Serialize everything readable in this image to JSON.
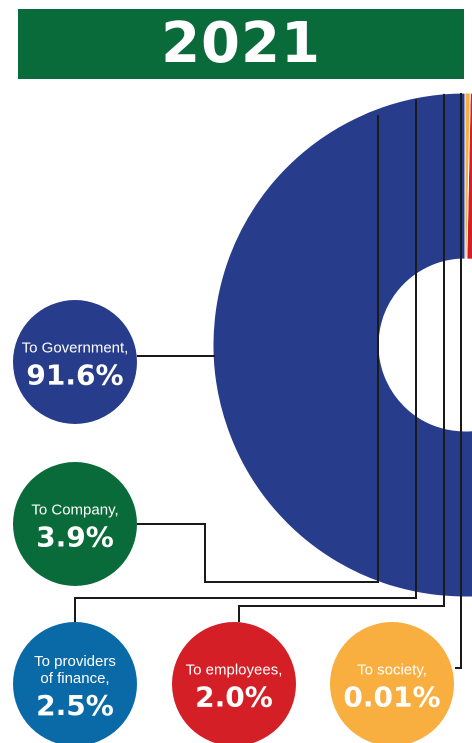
{
  "title": "2021",
  "colors": {
    "title_bg": "#0a6b3a",
    "leader_line": "#1a1a1a"
  },
  "chart_data": {
    "type": "pie",
    "title": "2021",
    "unit": "%",
    "slices": [
      {
        "label": "To Government,",
        "value": 91.6,
        "display": "91.6%",
        "color": "#283c8c"
      },
      {
        "label": "To Company,",
        "value": 3.9,
        "display": "3.9%",
        "color": "#0a6b3a"
      },
      {
        "label": "To providers of finance,",
        "label_lines": [
          "To providers",
          "of finance,"
        ],
        "value": 2.5,
        "display": "2.5%",
        "color": "#0a6aa8"
      },
      {
        "label": "To employees,",
        "value": 2.0,
        "display": "2.0%",
        "color": "#d41f26"
      },
      {
        "label": "To society,",
        "value": 0.01,
        "display": "0.01%",
        "color": "#f9ae40"
      }
    ]
  }
}
